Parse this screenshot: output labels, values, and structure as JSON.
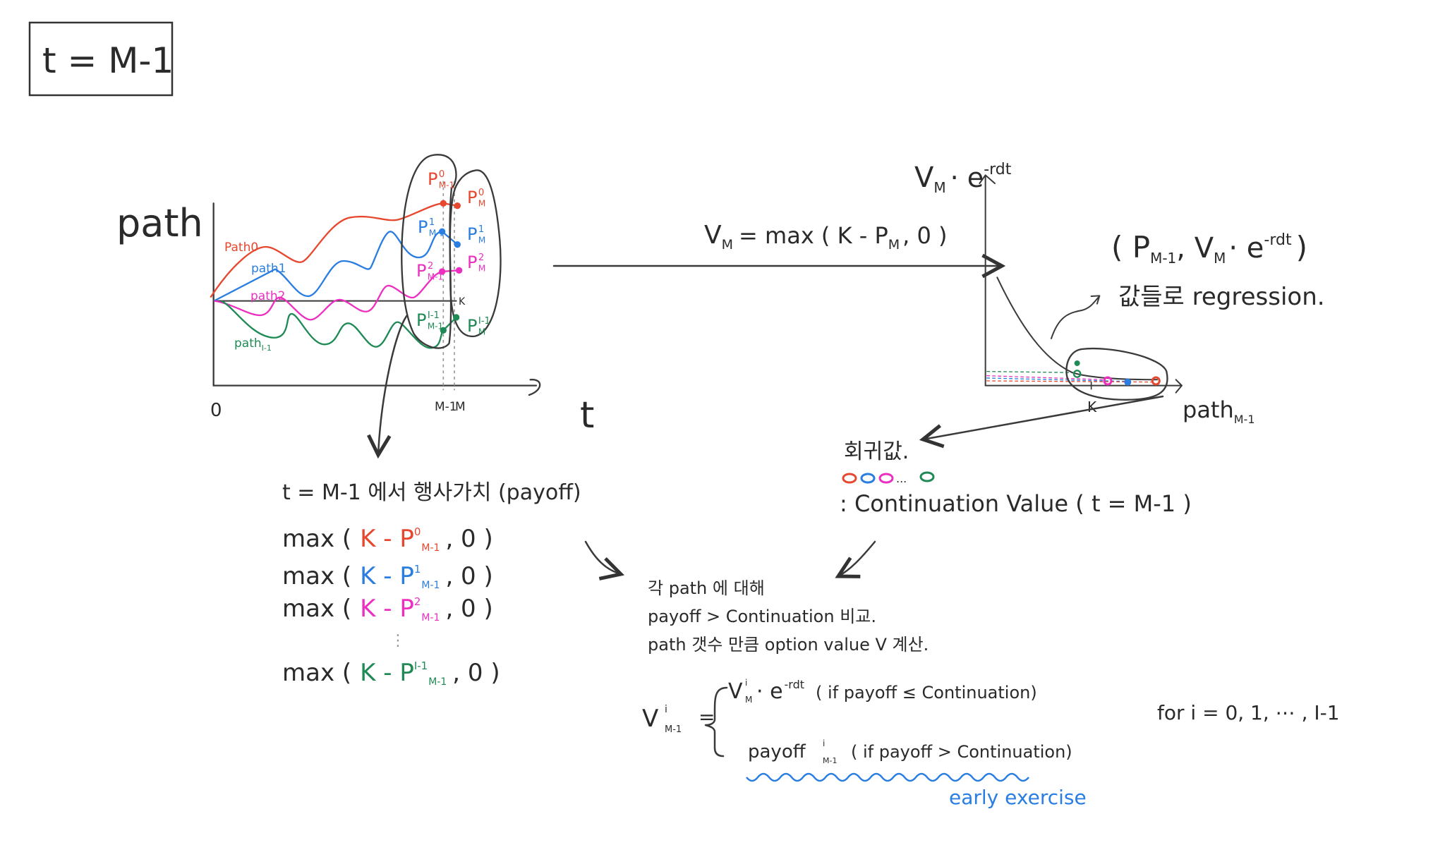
{
  "title": "t = M-1",
  "colors": {
    "ink": "#333333",
    "path0": "#e8472f",
    "path1": "#2a7de1",
    "path2": "#ec2fc0",
    "pathI": "#1f8a55",
    "highlight": "#2a7de1"
  },
  "left_chart": {
    "y_label": "path",
    "x_label": "t",
    "x_ticks": [
      "0",
      "M-1",
      "M"
    ],
    "strike_label": "K",
    "series": [
      {
        "name": "Path0",
        "sub": ""
      },
      {
        "name": "path1",
        "sub": ""
      },
      {
        "name": "path2",
        "sub": ""
      },
      {
        "name": "path",
        "sub": "I-1"
      }
    ],
    "points_m1": [
      {
        "base": "P",
        "sup": "0",
        "sub": "M-1"
      },
      {
        "base": "P",
        "sup": "1",
        "sub": "M-1"
      },
      {
        "base": "P",
        "sup": "2",
        "sub": "M-1"
      },
      {
        "base": "P",
        "sup": "I-1",
        "sub": "M-1"
      }
    ],
    "points_m": [
      {
        "base": "P",
        "sup": "0",
        "sub": "M"
      },
      {
        "base": "P",
        "sup": "1",
        "sub": "M"
      },
      {
        "base": "P",
        "sup": "2",
        "sub": "M"
      },
      {
        "base": "P",
        "sup": "I-1",
        "sub": "M"
      }
    ]
  },
  "terminal_formula": {
    "v": "V",
    "v_sub": "M",
    "rhs": "= max ( K - P",
    "p_sub": "M",
    "tail": ", 0 )"
  },
  "payoff_block": {
    "heading": "t = M-1 에서 행사가치 (payoff)",
    "rows": [
      {
        "fn": "max (",
        "k": "K - P",
        "sup": "0",
        "sub": "M-1",
        "tail": ", 0 )"
      },
      {
        "fn": "max (",
        "k": "K - P",
        "sup": "1",
        "sub": "M-1",
        "tail": ", 0 )"
      },
      {
        "fn": "max (",
        "k": "K - P",
        "sup": "2",
        "sub": "M-1",
        "tail": ", 0 )"
      },
      {
        "fn": "max (",
        "k": "K - P",
        "sup": "I-1",
        "sub": "M-1",
        "tail": ", 0 )"
      }
    ],
    "ellipsis": "⋮"
  },
  "right_chart": {
    "y_label": "V",
    "y_label_sub": "M",
    "y_label_rest": "· e",
    "y_label_sup": "-rdt",
    "x_label": "path",
    "x_label_sub": "M-1",
    "strike_label": "K",
    "pair": {
      "open": "( P",
      "p_sub": "M-1",
      "mid": ", V",
      "v_sub": "M",
      "rest": "· e",
      "sup": "-rdt",
      "close": ")"
    },
    "regression_note": "값들로 regression."
  },
  "regression_block": {
    "title": "회귀값.",
    "dots": "...",
    "desc": ": Continuation Value  ( t = M-1 )"
  },
  "compare_block": {
    "lines": [
      "각 path 에 대해",
      "payoff > Continuation 비교.",
      "path 갯수 만큼 option value V 계산."
    ]
  },
  "value_formula": {
    "lhs": "V",
    "lhs_sup": "i",
    "lhs_sub": "M-1",
    "eq": "=",
    "case1": {
      "v": "V",
      "sup": "i",
      "sub": "M",
      "rest": "· e",
      "exp": "-rdt",
      "cond": "( if  payoff ≤ Continuation)"
    },
    "case2": {
      "v": "payoff",
      "sup": "i",
      "sub": "M-1",
      "cond": "( if  payoff > Continuation)"
    },
    "range": "for  i = 0, 1, ⋯ , I-1",
    "annotation": "early exercise"
  }
}
